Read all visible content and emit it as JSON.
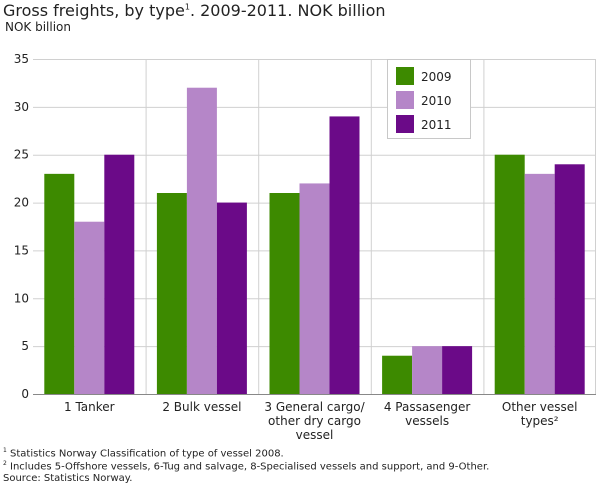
{
  "chart_data": {
    "type": "bar",
    "title": "Gross freights, by type",
    "title_sup": "1",
    "title_rest": ". 2009-2011. NOK billion",
    "ylabel": "NOK billion",
    "ylim": [
      0,
      35
    ],
    "yticks": [
      0,
      5,
      10,
      15,
      20,
      25,
      30,
      35
    ],
    "grid": true,
    "legend_placement": "top-center-right",
    "categories": [
      [
        "1 Tanker"
      ],
      [
        "2 Bulk vessel"
      ],
      [
        "3 General cargo/",
        "other dry cargo",
        "vessel"
      ],
      [
        "4 Passasenger",
        "vessels"
      ],
      [
        "Other vessel",
        "types²"
      ]
    ],
    "series": [
      {
        "name": "2009",
        "color": "#3d8a00",
        "values": [
          23,
          21,
          21,
          4,
          25
        ]
      },
      {
        "name": "2010",
        "color": "#b586c8",
        "values": [
          18,
          32,
          22,
          5,
          23
        ]
      },
      {
        "name": "2011",
        "color": "#6b0a88",
        "values": [
          25,
          20,
          29,
          5,
          24
        ]
      }
    ]
  },
  "footnotes": {
    "note1_sup": "1",
    "note1": " Statistics Norway Classification of type of vessel 2008.",
    "note2_sup": "2",
    "note2": " Includes 5-Offshore vessels, 6-Tug and salvage, 8-Specialised vessels and support, and 9-Other.",
    "source": "Source: Statistics Norway."
  }
}
